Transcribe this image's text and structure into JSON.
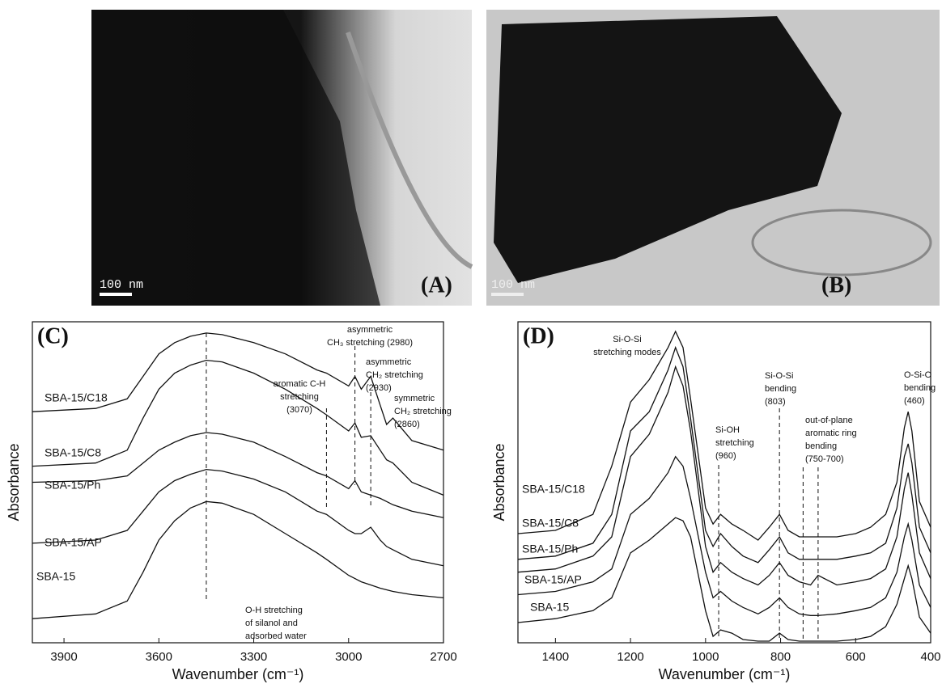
{
  "images": [
    {
      "label": "(A)",
      "scale_bar": "100 nm"
    },
    {
      "label": "(B)",
      "scale_bar": "100 nm"
    }
  ],
  "chart_data": [
    {
      "type": "line",
      "panel": "(C)",
      "x_label": "Wavenumber (cm⁻¹)",
      "y_label": "Absorbance",
      "color": "#111111",
      "xlim": [
        4000,
        2700
      ],
      "xticks": [
        3900,
        3600,
        3300,
        3000,
        2700
      ],
      "ylim": [
        0,
        100
      ],
      "x": [
        4000,
        3800,
        3700,
        3650,
        3600,
        3550,
        3500,
        3450,
        3400,
        3300,
        3200,
        3100,
        3070,
        3000,
        2980,
        2960,
        2930,
        2900,
        2880,
        2860,
        2800,
        2700
      ],
      "series": [
        {
          "name": "SBA-15/C18",
          "values": [
            72,
            73,
            76,
            83,
            90,
            93.5,
            95.5,
            96.5,
            96,
            93.5,
            90,
            85,
            84,
            80,
            83,
            79,
            83,
            74,
            68,
            70,
            63,
            60
          ]
        },
        {
          "name": "SBA-15/C8",
          "values": [
            55,
            56,
            60,
            70,
            79,
            84,
            86.5,
            88,
            87.5,
            84,
            79,
            73,
            71,
            66,
            68.5,
            64,
            64.5,
            60,
            57,
            56,
            50,
            46
          ]
        },
        {
          "name": "SBA-15/Ph",
          "values": [
            50,
            50.5,
            52,
            56,
            60,
            62.5,
            64.5,
            65.5,
            65,
            62.5,
            58,
            53,
            52,
            48,
            50.5,
            47,
            46,
            45,
            44,
            43,
            41,
            39
          ]
        },
        {
          "name": "SBA-15/AP",
          "values": [
            31,
            32,
            35,
            41,
            47,
            50.5,
            52.5,
            54,
            53.5,
            51,
            47,
            41,
            40,
            35,
            34,
            34,
            36,
            32,
            30,
            29,
            26,
            24
          ]
        },
        {
          "name": "SBA-15",
          "values": [
            7.5,
            9,
            13,
            22,
            32,
            38,
            42,
            44,
            43.5,
            40,
            34,
            28,
            26,
            21,
            20,
            19,
            18,
            17,
            16.5,
            16,
            15,
            14
          ]
        }
      ],
      "annotations": [
        {
          "text": [
            "O-H stretching",
            "of silanol and",
            "adsorbed water"
          ],
          "x": [
            3450
          ]
        },
        {
          "text": [
            "aromatic C-H",
            "stretching",
            "(3070)"
          ],
          "x": [
            3070
          ]
        },
        {
          "text": [
            "asymmetric",
            "CH₃ stretching (2980)"
          ],
          "x": [
            2980
          ]
        },
        {
          "text": [
            "asymmetric",
            "CH₂ stretching",
            "(2930)"
          ],
          "x": [
            2930
          ]
        },
        {
          "text": [
            "symmetric",
            "CH₂ stretching",
            "(2860)"
          ]
        }
      ]
    },
    {
      "type": "line",
      "panel": "(D)",
      "x_label": "Wavenumber (cm⁻¹)",
      "y_label": "Absorbance",
      "color": "#111111",
      "xlim": [
        1500,
        400
      ],
      "xticks": [
        1400,
        1200,
        1000,
        800,
        600,
        400
      ],
      "ylim": [
        0,
        100
      ],
      "x": [
        1500,
        1400,
        1300,
        1250,
        1200,
        1150,
        1100,
        1080,
        1060,
        1040,
        1000,
        980,
        960,
        930,
        900,
        860,
        830,
        803,
        780,
        750,
        720,
        700,
        650,
        600,
        560,
        520,
        490,
        470,
        460,
        450,
        430,
        400
      ],
      "series": [
        {
          "name": "SBA-15/C18",
          "values": [
            34,
            35,
            40,
            55,
            75,
            82,
            92,
            97,
            92,
            76,
            42,
            37,
            40,
            37,
            35,
            32,
            36,
            40,
            35,
            33,
            33,
            33,
            33,
            34,
            36,
            40,
            50,
            67,
            72,
            66,
            44,
            36
          ]
        },
        {
          "name": "SBA-15/C8",
          "values": [
            26,
            27,
            31,
            40,
            66,
            72,
            85,
            92,
            86,
            70,
            35,
            30,
            34,
            30,
            27,
            25,
            29,
            33,
            28,
            26,
            26,
            26,
            26,
            27,
            28,
            31,
            42,
            58,
            62,
            56,
            36,
            28
          ]
        },
        {
          "name": "SBA-15/Ph",
          "values": [
            22,
            23,
            27,
            33,
            58,
            65,
            78,
            86,
            80,
            66,
            30,
            22,
            25,
            22,
            20,
            18,
            21,
            25,
            21,
            19,
            18,
            21,
            18,
            19,
            20,
            23,
            33,
            48,
            53,
            46,
            28,
            20
          ]
        },
        {
          "name": "SBA-15/AP",
          "values": [
            15,
            16,
            19,
            23,
            40,
            45,
            53,
            58,
            55,
            45,
            22,
            14,
            16,
            13,
            11,
            9,
            11,
            14,
            11,
            9,
            8.5,
            8.5,
            9,
            10,
            11,
            14,
            22,
            33,
            37,
            32,
            18,
            11
          ]
        },
        {
          "name": "SBA-15",
          "values": [
            6.3,
            7.5,
            10,
            14,
            28,
            32,
            37,
            39,
            38,
            33,
            10,
            2,
            4,
            3,
            1,
            0.5,
            0.5,
            3,
            1,
            0.5,
            0.5,
            0.5,
            0.5,
            1,
            2,
            5,
            12,
            20,
            24,
            20,
            8,
            3
          ]
        }
      ],
      "annotations": [
        {
          "text": [
            "Si-O-Si",
            "stretching modes"
          ]
        },
        {
          "text": [
            "Si-OH",
            "stretching",
            "(960)"
          ],
          "x": [
            965
          ]
        },
        {
          "text": [
            "Si-O-Si",
            "bending",
            "(803)"
          ],
          "x": [
            803
          ]
        },
        {
          "text": [
            "out-of-plane",
            "aromatic ring",
            "bending",
            "(750-700)"
          ],
          "x": [
            740,
            700
          ]
        },
        {
          "text": [
            "O-Si-O",
            "bending",
            "(460)"
          ]
        }
      ]
    }
  ]
}
